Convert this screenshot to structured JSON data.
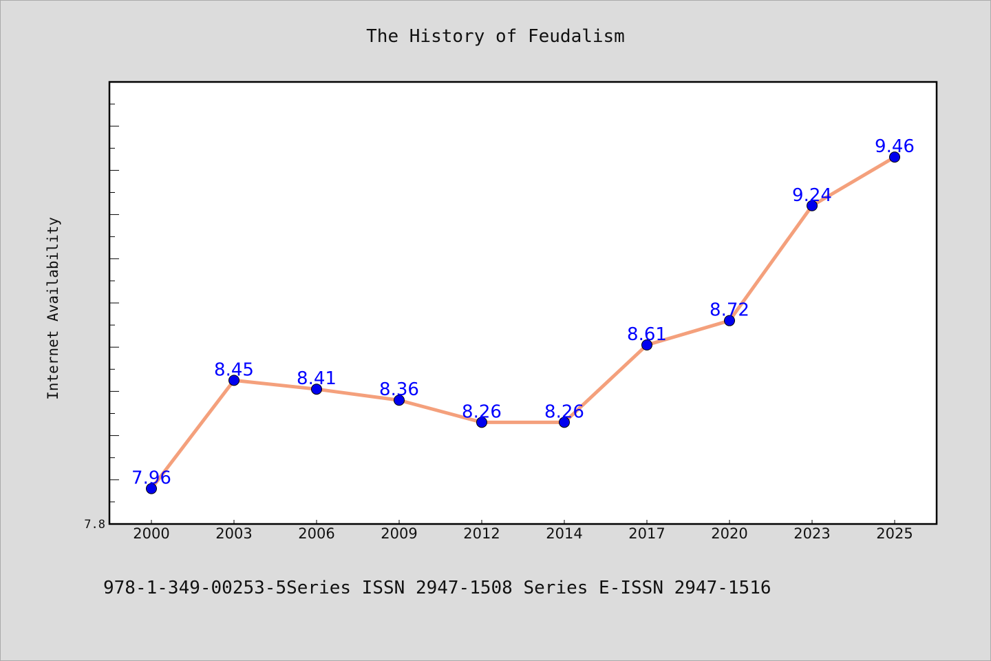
{
  "chart_data": {
    "type": "line",
    "title": "The History of Feudalism",
    "xlabel": "",
    "ylabel": "Internet Availability",
    "categories": [
      "2000",
      "2003",
      "2006",
      "2009",
      "2012",
      "2014",
      "2017",
      "2020",
      "2023",
      "2025"
    ],
    "series": [
      {
        "values": [
          7.96,
          8.45,
          8.41,
          8.36,
          8.26,
          8.26,
          8.61,
          8.72,
          9.24,
          9.46
        ],
        "labels": [
          "7.96",
          "8.45",
          "8.41",
          "8.36",
          "8.26",
          "8.26",
          "8.61",
          "8.72",
          "9.24",
          "9.46"
        ],
        "line_color": "#f4a07c",
        "marker_color": "#0000ee"
      }
    ],
    "ylim": [
      7.8,
      9.8
    ],
    "yticks_labeled": [
      "7.8"
    ],
    "grid": false,
    "legend": "none"
  },
  "footer": {
    "text": "978-1-349-00253-5Series ISSN 2947-1508 Series E-ISSN 2947-1516"
  },
  "colors": {
    "background": "#dcdcdc",
    "plot_background": "#ffffff",
    "data_label": "#0000ff"
  }
}
